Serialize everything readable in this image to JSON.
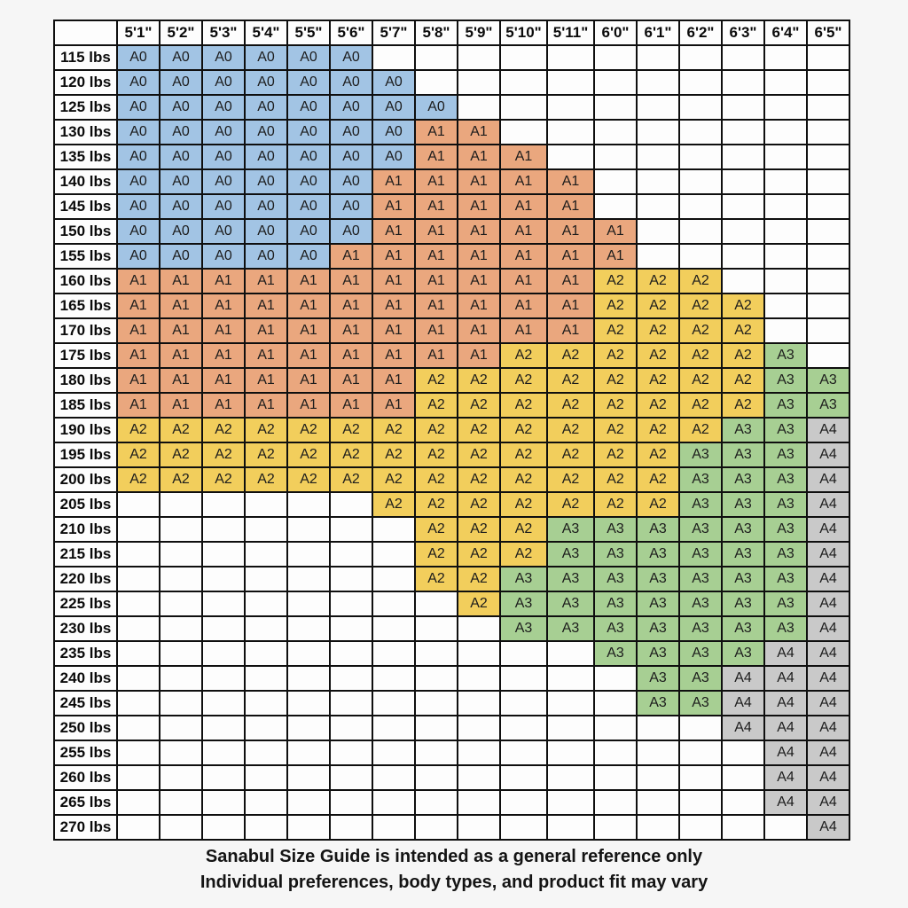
{
  "page": {
    "background_color": "#f6f6f6",
    "grid_border_color": "#0f0f0f",
    "header_cell_color": "#fdfdfd"
  },
  "footer": {
    "line1": "Sanabul Size Guide is intended as a general reference only",
    "line2": "Individual preferences, body types, and product fit may vary"
  },
  "chart_data": {
    "type": "table",
    "title": "Sanabul Size Guide (height vs weight, gi sizes A0-A4)",
    "corner_label": "",
    "columns": [
      "5'1\"",
      "5'2\"",
      "5'3\"",
      "5'4\"",
      "5'5\"",
      "5'6\"",
      "5'7\"",
      "5'8\"",
      "5'9\"",
      "5'10\"",
      "5'11\"",
      "6'0\"",
      "6'1\"",
      "6'2\"",
      "6'3\"",
      "6'4\"",
      "6'5\""
    ],
    "size_colors": {
      "A0": "#a2c4e4",
      "A1": "#eaa77e",
      "A2": "#f2ce5c",
      "A3": "#a7cf93",
      "A4": "#c9c9c9"
    },
    "rows": [
      {
        "weight": "115 lbs",
        "cells": [
          "A0",
          "A0",
          "A0",
          "A0",
          "A0",
          "A0",
          "",
          "",
          "",
          "",
          "",
          "",
          "",
          "",
          "",
          "",
          ""
        ]
      },
      {
        "weight": "120 lbs",
        "cells": [
          "A0",
          "A0",
          "A0",
          "A0",
          "A0",
          "A0",
          "A0",
          "",
          "",
          "",
          "",
          "",
          "",
          "",
          "",
          "",
          ""
        ]
      },
      {
        "weight": "125 lbs",
        "cells": [
          "A0",
          "A0",
          "A0",
          "A0",
          "A0",
          "A0",
          "A0",
          "A0",
          "",
          "",
          "",
          "",
          "",
          "",
          "",
          "",
          ""
        ]
      },
      {
        "weight": "130 lbs",
        "cells": [
          "A0",
          "A0",
          "A0",
          "A0",
          "A0",
          "A0",
          "A0",
          "A1",
          "A1",
          "",
          "",
          "",
          "",
          "",
          "",
          "",
          ""
        ]
      },
      {
        "weight": "135 lbs",
        "cells": [
          "A0",
          "A0",
          "A0",
          "A0",
          "A0",
          "A0",
          "A0",
          "A1",
          "A1",
          "A1",
          "",
          "",
          "",
          "",
          "",
          "",
          ""
        ]
      },
      {
        "weight": "140 lbs",
        "cells": [
          "A0",
          "A0",
          "A0",
          "A0",
          "A0",
          "A0",
          "A1",
          "A1",
          "A1",
          "A1",
          "A1",
          "",
          "",
          "",
          "",
          "",
          ""
        ]
      },
      {
        "weight": "145 lbs",
        "cells": [
          "A0",
          "A0",
          "A0",
          "A0",
          "A0",
          "A0",
          "A1",
          "A1",
          "A1",
          "A1",
          "A1",
          "",
          "",
          "",
          "",
          "",
          ""
        ]
      },
      {
        "weight": "150 lbs",
        "cells": [
          "A0",
          "A0",
          "A0",
          "A0",
          "A0",
          "A0",
          "A1",
          "A1",
          "A1",
          "A1",
          "A1",
          "A1",
          "",
          "",
          "",
          "",
          ""
        ]
      },
      {
        "weight": "155 lbs",
        "cells": [
          "A0",
          "A0",
          "A0",
          "A0",
          "A0",
          "A1",
          "A1",
          "A1",
          "A1",
          "A1",
          "A1",
          "A1",
          "",
          "",
          "",
          "",
          ""
        ]
      },
      {
        "weight": "160 lbs",
        "cells": [
          "A1",
          "A1",
          "A1",
          "A1",
          "A1",
          "A1",
          "A1",
          "A1",
          "A1",
          "A1",
          "A1",
          "A2",
          "A2",
          "A2",
          "",
          "",
          ""
        ]
      },
      {
        "weight": "165 lbs",
        "cells": [
          "A1",
          "A1",
          "A1",
          "A1",
          "A1",
          "A1",
          "A1",
          "A1",
          "A1",
          "A1",
          "A1",
          "A2",
          "A2",
          "A2",
          "A2",
          "",
          ""
        ]
      },
      {
        "weight": "170 lbs",
        "cells": [
          "A1",
          "A1",
          "A1",
          "A1",
          "A1",
          "A1",
          "A1",
          "A1",
          "A1",
          "A1",
          "A1",
          "A2",
          "A2",
          "A2",
          "A2",
          "",
          ""
        ]
      },
      {
        "weight": "175 lbs",
        "cells": [
          "A1",
          "A1",
          "A1",
          "A1",
          "A1",
          "A1",
          "A1",
          "A1",
          "A1",
          "A2",
          "A2",
          "A2",
          "A2",
          "A2",
          "A2",
          "A3",
          ""
        ]
      },
      {
        "weight": "180 lbs",
        "cells": [
          "A1",
          "A1",
          "A1",
          "A1",
          "A1",
          "A1",
          "A1",
          "A2",
          "A2",
          "A2",
          "A2",
          "A2",
          "A2",
          "A2",
          "A2",
          "A3",
          "A3"
        ]
      },
      {
        "weight": "185 lbs",
        "cells": [
          "A1",
          "A1",
          "A1",
          "A1",
          "A1",
          "A1",
          "A1",
          "A2",
          "A2",
          "A2",
          "A2",
          "A2",
          "A2",
          "A2",
          "A2",
          "A3",
          "A3"
        ]
      },
      {
        "weight": "190 lbs",
        "cells": [
          "A2",
          "A2",
          "A2",
          "A2",
          "A2",
          "A2",
          "A2",
          "A2",
          "A2",
          "A2",
          "A2",
          "A2",
          "A2",
          "A2",
          "A3",
          "A3",
          "A4"
        ]
      },
      {
        "weight": "195 lbs",
        "cells": [
          "A2",
          "A2",
          "A2",
          "A2",
          "A2",
          "A2",
          "A2",
          "A2",
          "A2",
          "A2",
          "A2",
          "A2",
          "A2",
          "A3",
          "A3",
          "A3",
          "A4"
        ]
      },
      {
        "weight": "200 lbs",
        "cells": [
          "A2",
          "A2",
          "A2",
          "A2",
          "A2",
          "A2",
          "A2",
          "A2",
          "A2",
          "A2",
          "A2",
          "A2",
          "A2",
          "A3",
          "A3",
          "A3",
          "A4"
        ]
      },
      {
        "weight": "205 lbs",
        "cells": [
          "",
          "",
          "",
          "",
          "",
          "",
          "A2",
          "A2",
          "A2",
          "A2",
          "A2",
          "A2",
          "A2",
          "A3",
          "A3",
          "A3",
          "A4"
        ]
      },
      {
        "weight": "210 lbs",
        "cells": [
          "",
          "",
          "",
          "",
          "",
          "",
          "",
          "A2",
          "A2",
          "A2",
          "A3",
          "A3",
          "A3",
          "A3",
          "A3",
          "A3",
          "A4"
        ]
      },
      {
        "weight": "215 lbs",
        "cells": [
          "",
          "",
          "",
          "",
          "",
          "",
          "",
          "A2",
          "A2",
          "A2",
          "A3",
          "A3",
          "A3",
          "A3",
          "A3",
          "A3",
          "A4"
        ]
      },
      {
        "weight": "220 lbs",
        "cells": [
          "",
          "",
          "",
          "",
          "",
          "",
          "",
          "A2",
          "A2",
          "A3",
          "A3",
          "A3",
          "A3",
          "A3",
          "A3",
          "A3",
          "A4"
        ]
      },
      {
        "weight": "225 lbs",
        "cells": [
          "",
          "",
          "",
          "",
          "",
          "",
          "",
          "",
          "A2",
          "A3",
          "A3",
          "A3",
          "A3",
          "A3",
          "A3",
          "A3",
          "A4"
        ]
      },
      {
        "weight": "230 lbs",
        "cells": [
          "",
          "",
          "",
          "",
          "",
          "",
          "",
          "",
          "",
          "A3",
          "A3",
          "A3",
          "A3",
          "A3",
          "A3",
          "A3",
          "A4"
        ]
      },
      {
        "weight": "235 lbs",
        "cells": [
          "",
          "",
          "",
          "",
          "",
          "",
          "",
          "",
          "",
          "",
          "",
          "A3",
          "A3",
          "A3",
          "A3",
          "A4",
          "A4"
        ]
      },
      {
        "weight": "240 lbs",
        "cells": [
          "",
          "",
          "",
          "",
          "",
          "",
          "",
          "",
          "",
          "",
          "",
          "",
          "A3",
          "A3",
          "A4",
          "A4",
          "A4"
        ]
      },
      {
        "weight": "245 lbs",
        "cells": [
          "",
          "",
          "",
          "",
          "",
          "",
          "",
          "",
          "",
          "",
          "",
          "",
          "A3",
          "A3",
          "A4",
          "A4",
          "A4"
        ]
      },
      {
        "weight": "250 lbs",
        "cells": [
          "",
          "",
          "",
          "",
          "",
          "",
          "",
          "",
          "",
          "",
          "",
          "",
          "",
          "",
          "A4",
          "A4",
          "A4"
        ]
      },
      {
        "weight": "255 lbs",
        "cells": [
          "",
          "",
          "",
          "",
          "",
          "",
          "",
          "",
          "",
          "",
          "",
          "",
          "",
          "",
          "",
          "A4",
          "A4"
        ]
      },
      {
        "weight": "260 lbs",
        "cells": [
          "",
          "",
          "",
          "",
          "",
          "",
          "",
          "",
          "",
          "",
          "",
          "",
          "",
          "",
          "",
          "A4",
          "A4"
        ]
      },
      {
        "weight": "265 lbs",
        "cells": [
          "",
          "",
          "",
          "",
          "",
          "",
          "",
          "",
          "",
          "",
          "",
          "",
          "",
          "",
          "",
          "A4",
          "A4"
        ]
      },
      {
        "weight": "270 lbs",
        "cells": [
          "",
          "",
          "",
          "",
          "",
          "",
          "",
          "",
          "",
          "",
          "",
          "",
          "",
          "",
          "",
          "",
          "A4"
        ]
      }
    ]
  }
}
